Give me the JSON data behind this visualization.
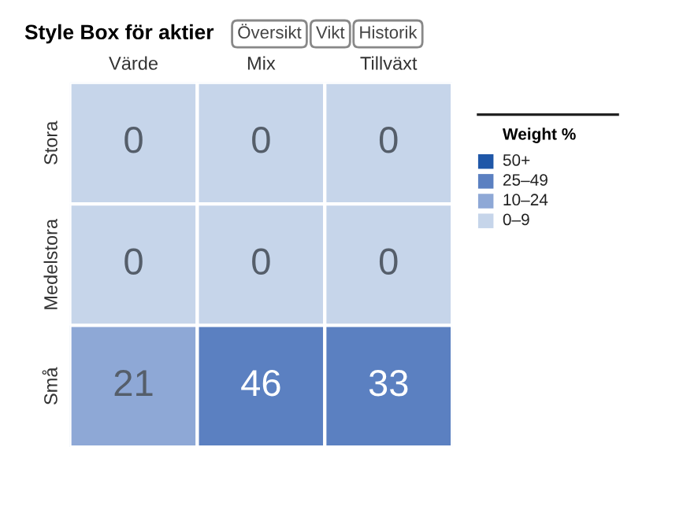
{
  "chart_data": {
    "type": "heatmap",
    "title": "Style Box för aktier",
    "annotations": [
      "Översikt",
      "Vikt",
      "Historik",
      "Weight %",
      "50+",
      "25–49",
      "10–24",
      "0–9"
    ],
    "categories": [
      "Värde",
      "Mix",
      "Tillväxt"
    ],
    "y_categories": [
      "Stora",
      "Medelstora",
      "Små"
    ],
    "cells": [
      [
        0,
        0,
        0
      ],
      [
        0,
        0,
        0
      ],
      [
        21,
        46,
        33
      ]
    ],
    "colors": [
      [
        "#c6d5ea",
        "#c6d5ea",
        "#c6d5ea"
      ],
      [
        "#c6d5ea",
        "#c6d5ea",
        "#c6d5ea"
      ],
      [
        "#8ea8d6",
        "#5b80c1",
        "#5b80c1"
      ]
    ],
    "data_labels": true
  }
}
